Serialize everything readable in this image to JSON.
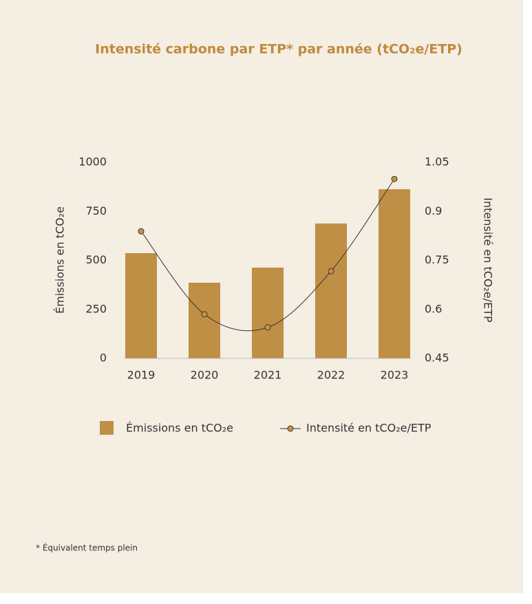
{
  "chart_data": {
    "type": "bar",
    "title": "Intensité carbone par ETP* par année (tCO₂e/ETP)",
    "categories": [
      "2019",
      "2020",
      "2021",
      "2022",
      "2023"
    ],
    "series": [
      {
        "name": "Émissions en tCO₂e",
        "type": "bar",
        "color": "#bf8f45",
        "values": [
          537,
          386,
          463,
          688,
          863
        ]
      },
      {
        "name": "Intensité en tCO₂e/ETP",
        "type": "line",
        "axis": "y2",
        "color": "#c9923f",
        "values": [
          0.839,
          0.585,
          0.545,
          0.717,
          0.999
        ]
      }
    ],
    "ylabel": "Émissions en tCO₂e",
    "y2label": "Intensité en tCO₂e/ETP",
    "ylim": [
      0,
      1000
    ],
    "yticks": [
      0,
      250,
      500,
      750,
      1000
    ],
    "y2lim": [
      0.45,
      1.05
    ],
    "y2ticks": [
      0.45,
      0.6,
      0.75,
      0.9,
      1.05
    ],
    "footnote": "* Équivalent temps plein"
  }
}
